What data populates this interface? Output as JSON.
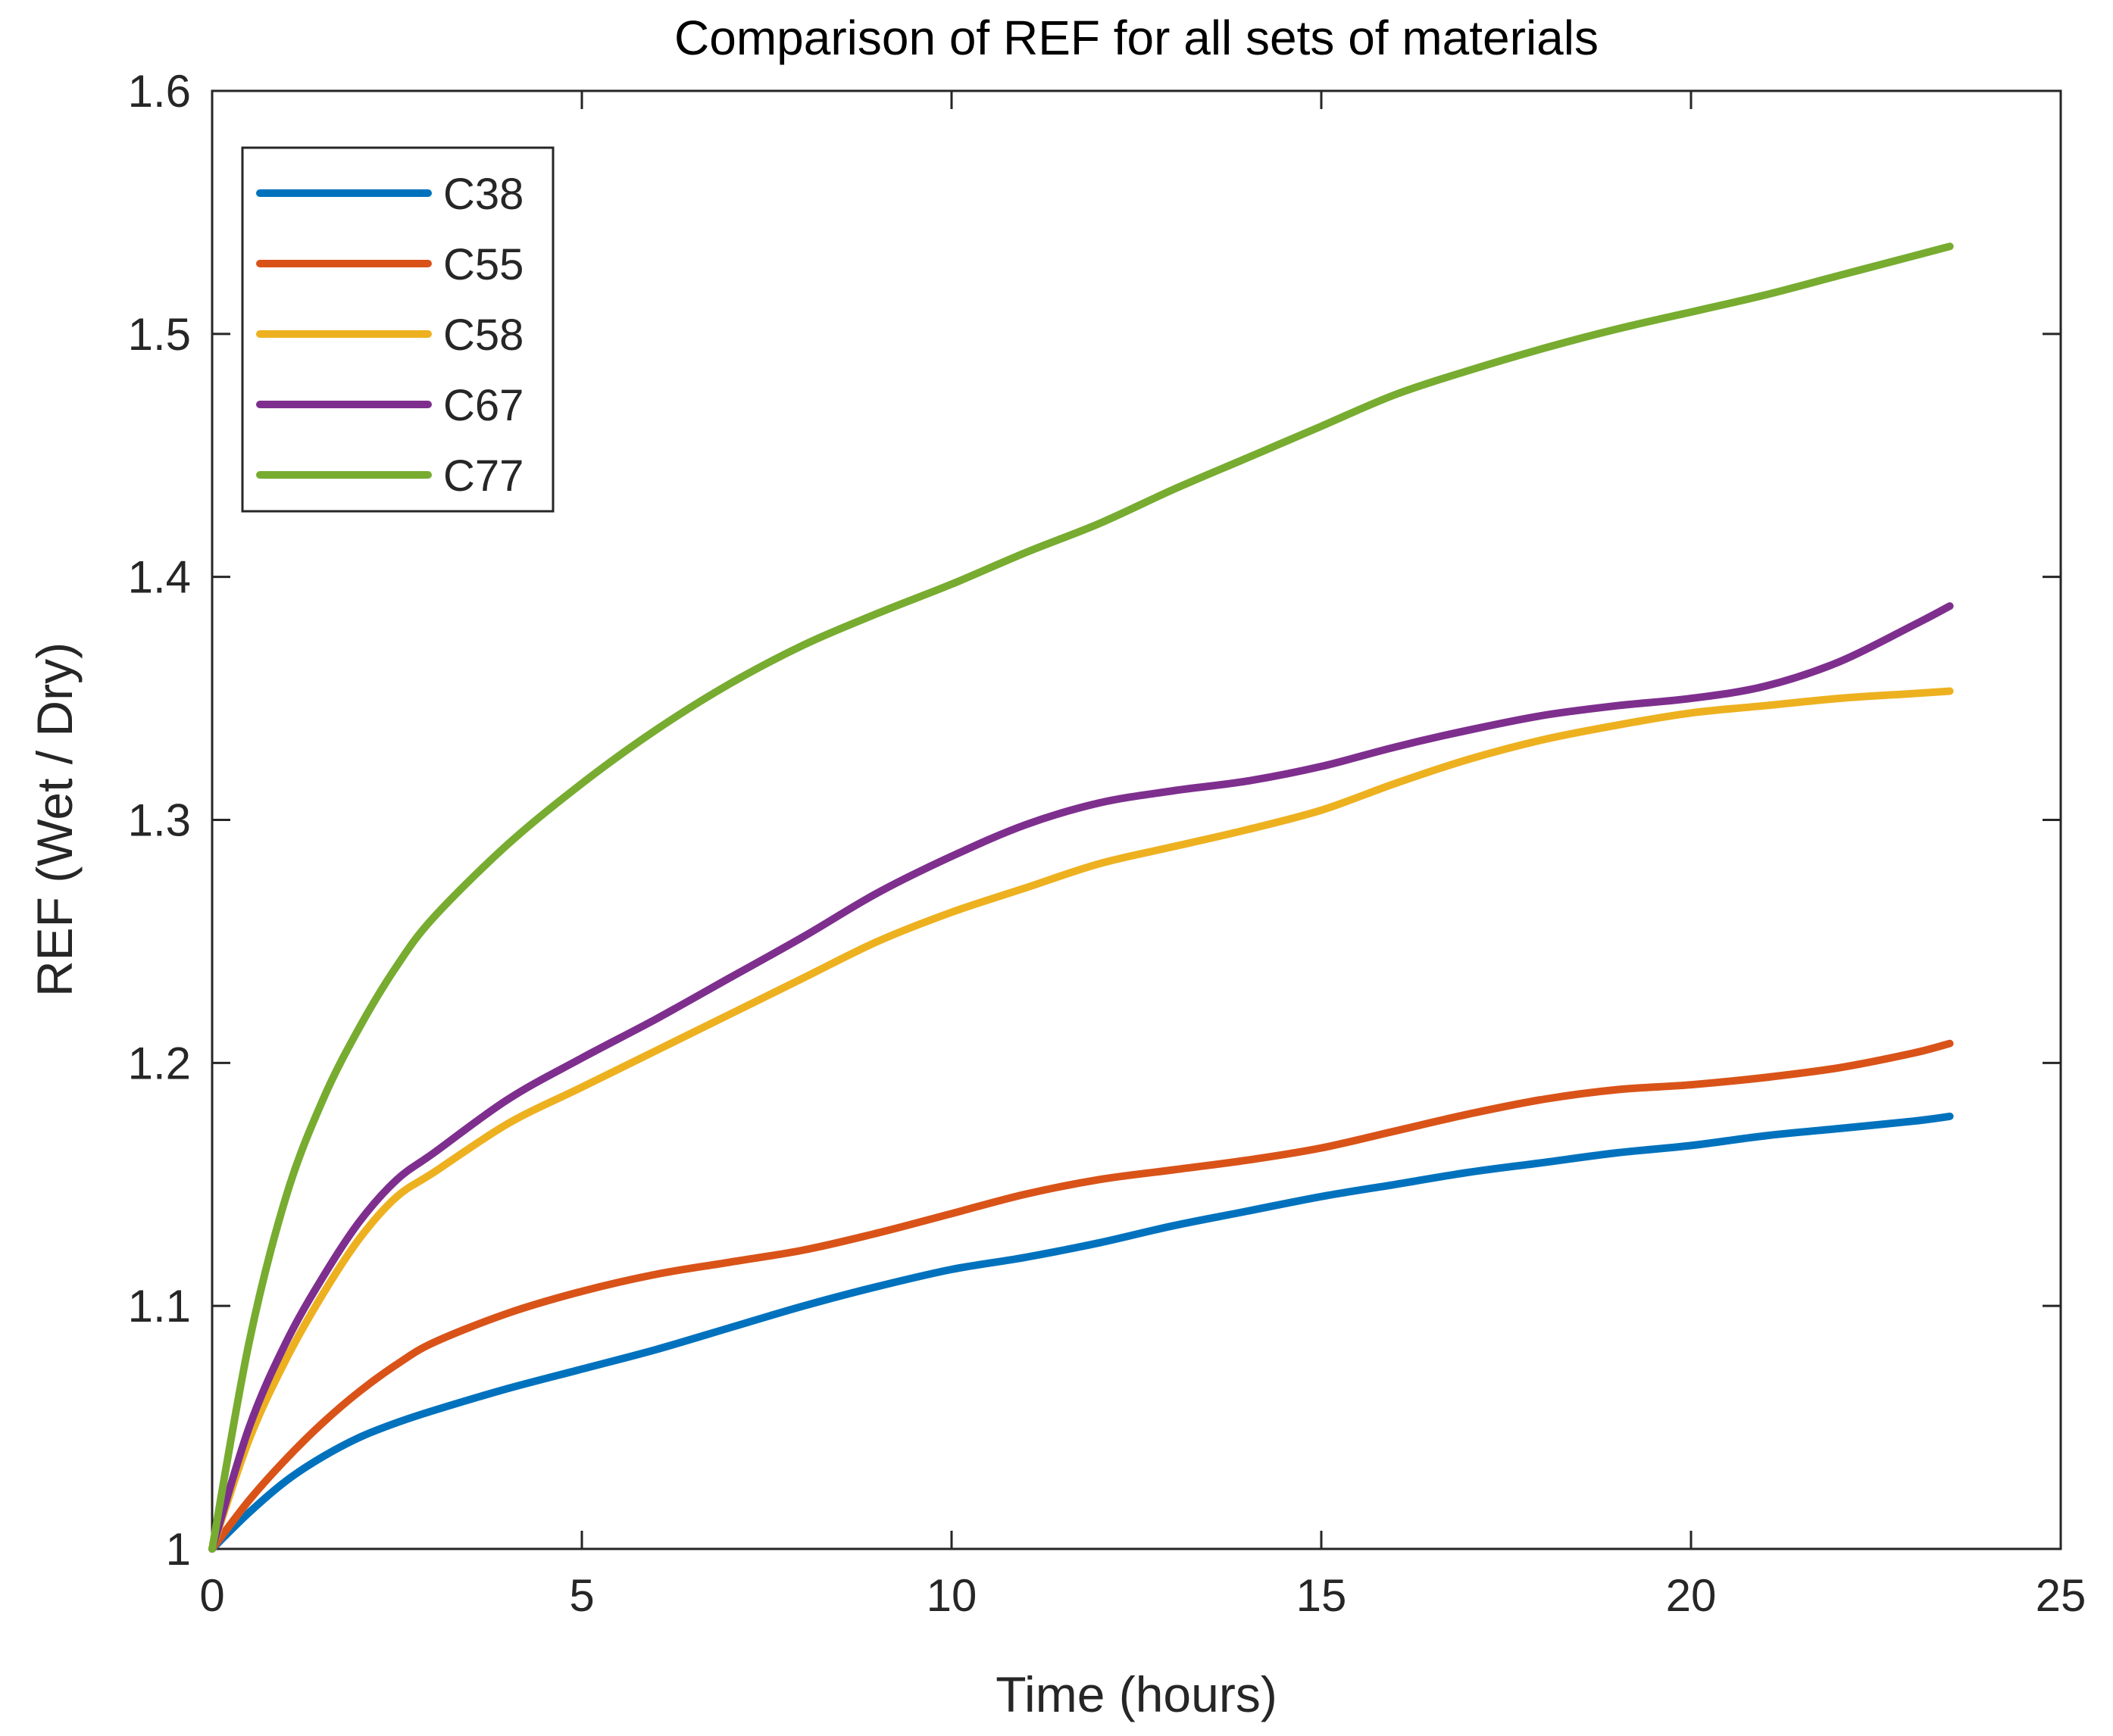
{
  "chart_data": {
    "type": "line",
    "title": "Comparison of REF for all sets of materials",
    "xlabel": "Time (hours)",
    "ylabel": "REF (Wet / Dry)",
    "xlim": [
      0,
      25
    ],
    "ylim": [
      1,
      1.6
    ],
    "xticks": [
      0,
      5,
      10,
      15,
      20,
      25
    ],
    "yticks": [
      1,
      1.1,
      1.2,
      1.3,
      1.4,
      1.5,
      1.6
    ],
    "xtick_labels": [
      "0",
      "5",
      "10",
      "15",
      "20",
      "25"
    ],
    "ytick_labels": [
      "1",
      "1.1",
      "1.2",
      "1.3",
      "1.4",
      "1.5",
      "1.6"
    ],
    "grid": false,
    "legend_position": "top-left",
    "x": [
      0,
      0.5,
      1,
      1.5,
      2,
      2.5,
      3,
      4,
      5,
      6,
      7,
      8,
      9,
      10,
      11,
      12,
      13,
      14,
      15,
      16,
      17,
      18,
      19,
      20,
      21,
      22,
      23,
      23.5
    ],
    "series": [
      {
        "name": "C38",
        "color": "#0072BD",
        "values": [
          1.0,
          1.015,
          1.028,
          1.038,
          1.046,
          1.052,
          1.057,
          1.066,
          1.074,
          1.082,
          1.091,
          1.1,
          1.108,
          1.115,
          1.12,
          1.126,
          1.133,
          1.139,
          1.145,
          1.15,
          1.155,
          1.159,
          1.163,
          1.166,
          1.17,
          1.173,
          1.176,
          1.178
        ]
      },
      {
        "name": "C55",
        "color": "#D95319",
        "values": [
          1.0,
          1.02,
          1.037,
          1.052,
          1.065,
          1.076,
          1.085,
          1.097,
          1.106,
          1.113,
          1.118,
          1.123,
          1.13,
          1.138,
          1.146,
          1.152,
          1.156,
          1.16,
          1.165,
          1.172,
          1.179,
          1.185,
          1.189,
          1.191,
          1.194,
          1.198,
          1.204,
          1.208
        ]
      },
      {
        "name": "C58",
        "color": "#EDB120",
        "values": [
          1.0,
          1.045,
          1.078,
          1.105,
          1.128,
          1.145,
          1.155,
          1.175,
          1.19,
          1.205,
          1.22,
          1.235,
          1.25,
          1.262,
          1.272,
          1.282,
          1.289,
          1.296,
          1.304,
          1.315,
          1.325,
          1.333,
          1.339,
          1.344,
          1.347,
          1.35,
          1.352,
          1.353
        ]
      },
      {
        "name": "C67",
        "color": "#7E2F8E",
        "values": [
          1.0,
          1.05,
          1.085,
          1.112,
          1.135,
          1.152,
          1.163,
          1.185,
          1.202,
          1.218,
          1.235,
          1.252,
          1.27,
          1.285,
          1.298,
          1.307,
          1.312,
          1.316,
          1.322,
          1.33,
          1.337,
          1.343,
          1.347,
          1.35,
          1.355,
          1.365,
          1.38,
          1.388
        ]
      },
      {
        "name": "C77",
        "color": "#77AC30",
        "values": [
          1.0,
          1.085,
          1.145,
          1.185,
          1.215,
          1.24,
          1.26,
          1.29,
          1.315,
          1.337,
          1.356,
          1.372,
          1.385,
          1.397,
          1.41,
          1.422,
          1.436,
          1.449,
          1.462,
          1.475,
          1.485,
          1.494,
          1.502,
          1.509,
          1.516,
          1.524,
          1.532,
          1.536
        ]
      }
    ]
  }
}
